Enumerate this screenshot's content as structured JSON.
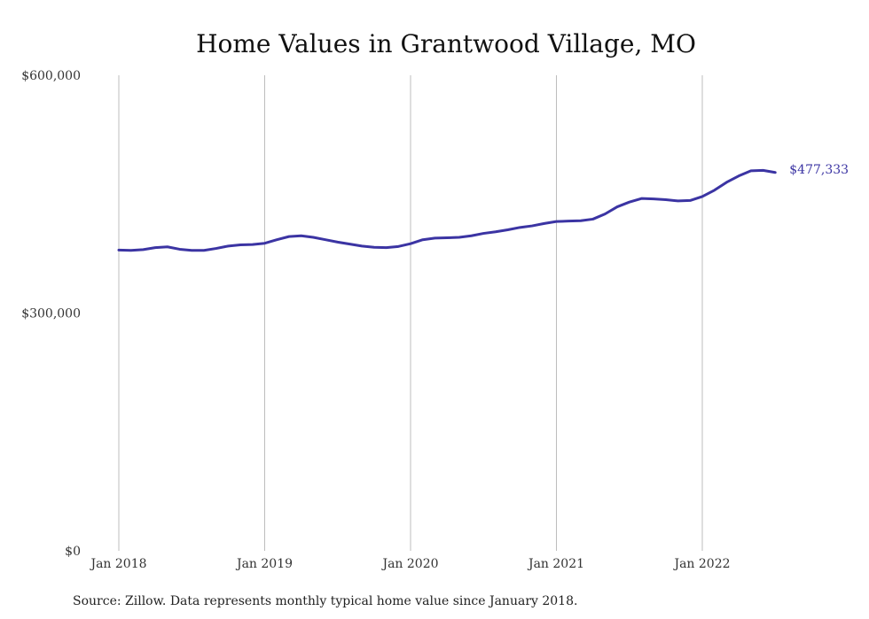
{
  "chart_data": {
    "type": "line",
    "title": "Home Values in Grantwood Village, MO",
    "xlabel": "",
    "ylabel": "",
    "ylim": [
      0,
      600000
    ],
    "y_ticks": [
      {
        "value": 0,
        "label": "$0"
      },
      {
        "value": 300000,
        "label": "$300,000"
      },
      {
        "value": 600000,
        "label": "$600,000"
      }
    ],
    "x_ticks": [
      {
        "value": "2018-01",
        "label": "Jan 2018"
      },
      {
        "value": "2019-01",
        "label": "Jan 2019"
      },
      {
        "value": "2020-01",
        "label": "Jan 2020"
      },
      {
        "value": "2021-01",
        "label": "Jan 2021"
      },
      {
        "value": "2022-01",
        "label": "Jan 2022"
      }
    ],
    "grid": "vertical",
    "legend": "none",
    "line_color": "#3b34a3",
    "end_label": "$477,333",
    "x": [
      "2018-01",
      "2018-02",
      "2018-03",
      "2018-04",
      "2018-05",
      "2018-06",
      "2018-07",
      "2018-08",
      "2018-09",
      "2018-10",
      "2018-11",
      "2018-12",
      "2019-01",
      "2019-02",
      "2019-03",
      "2019-04",
      "2019-05",
      "2019-06",
      "2019-07",
      "2019-08",
      "2019-09",
      "2019-10",
      "2019-11",
      "2019-12",
      "2020-01",
      "2020-02",
      "2020-03",
      "2020-04",
      "2020-05",
      "2020-06",
      "2020-07",
      "2020-08",
      "2020-09",
      "2020-10",
      "2020-11",
      "2020-12",
      "2021-01",
      "2021-02",
      "2021-03",
      "2021-04",
      "2021-05",
      "2021-06",
      "2021-07",
      "2021-08",
      "2021-09",
      "2021-10",
      "2021-11",
      "2021-12",
      "2022-01",
      "2022-02",
      "2022-03",
      "2022-04",
      "2022-05",
      "2022-06",
      "2022-07"
    ],
    "series": [
      {
        "values": [
          379500,
          379000,
          380000,
          382500,
          383500,
          380500,
          379000,
          379000,
          381500,
          384500,
          386000,
          386500,
          388000,
          392500,
          396500,
          397500,
          395500,
          392500,
          389500,
          387000,
          384500,
          383000,
          382500,
          384000,
          387500,
          392500,
          394500,
          395000,
          395500,
          397500,
          400500,
          402500,
          405000,
          408000,
          410000,
          413000,
          415500,
          416000,
          416500,
          418500,
          425000,
          434000,
          440000,
          444500,
          444000,
          443000,
          441500,
          442000,
          447000,
          455000,
          465000,
          473000,
          479500,
          480000,
          477333
        ]
      }
    ]
  },
  "source_text": "Source: Zillow. Data represents monthly typical home value since January 2018."
}
